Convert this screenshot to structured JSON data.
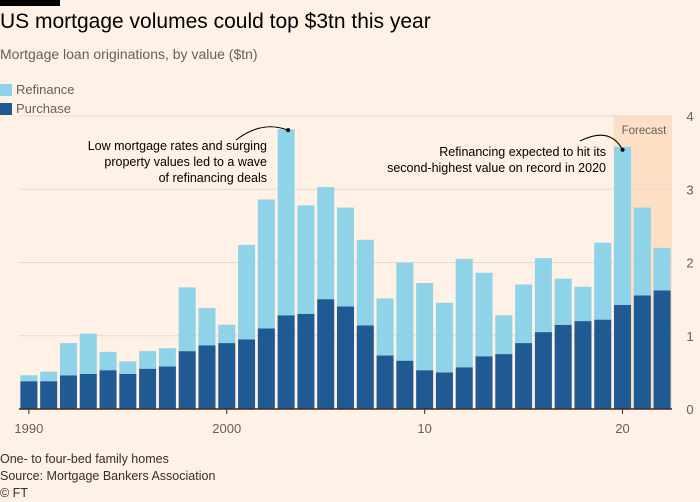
{
  "header": {
    "title": "US mortgage volumes could top $3tn this year",
    "subtitle": "Mortgage loan originations, by value ($tn)"
  },
  "legend": [
    {
      "label": "Refinance",
      "color": "#8fd3e8"
    },
    {
      "label": "Purchase",
      "color": "#1f5a93"
    }
  ],
  "footer": {
    "note": "One- to four-bed family homes",
    "source": "Source: Mortgage Bankers Association",
    "credit": "© FT"
  },
  "chart_data": {
    "type": "bar",
    "stacked": true,
    "title": "US mortgage volumes could top $3tn this year",
    "ylabel": "Mortgage loan originations, by value ($tn)",
    "ylim": [
      0,
      4
    ],
    "yticks": [
      "0",
      "1",
      "2",
      "3",
      "4"
    ],
    "y_axis_side": "right",
    "categories": [
      1990,
      1991,
      1992,
      1993,
      1994,
      1995,
      1996,
      1997,
      1998,
      1999,
      2000,
      2001,
      2002,
      2003,
      2004,
      2005,
      2006,
      2007,
      2008,
      2009,
      2010,
      2011,
      2012,
      2013,
      2014,
      2015,
      2016,
      2017,
      2018,
      2019,
      2020,
      2021,
      2022
    ],
    "x_tick_labels": [
      {
        "year": 1990,
        "label": "1990"
      },
      {
        "year": 2000,
        "label": "2000"
      },
      {
        "year": 2010,
        "label": "10"
      },
      {
        "year": 2020,
        "label": "20"
      }
    ],
    "series": [
      {
        "name": "Purchase",
        "color": "#1f5a93",
        "values": [
          0.38,
          0.38,
          0.46,
          0.48,
          0.53,
          0.48,
          0.55,
          0.58,
          0.79,
          0.87,
          0.9,
          0.95,
          1.1,
          1.28,
          1.3,
          1.5,
          1.4,
          1.14,
          0.73,
          0.66,
          0.53,
          0.5,
          0.57,
          0.72,
          0.75,
          0.9,
          1.05,
          1.15,
          1.2,
          1.22,
          1.42,
          1.55,
          1.62
        ]
      },
      {
        "name": "Refinance",
        "color": "#8fd3e8",
        "values": [
          0.08,
          0.13,
          0.44,
          0.55,
          0.25,
          0.17,
          0.24,
          0.25,
          0.87,
          0.51,
          0.25,
          1.29,
          1.76,
          2.54,
          1.48,
          1.53,
          1.35,
          1.17,
          0.78,
          1.34,
          1.19,
          0.95,
          1.48,
          1.14,
          0.53,
          0.8,
          1.01,
          0.63,
          0.47,
          1.05,
          2.16,
          1.2,
          0.58
        ]
      }
    ],
    "forecast": {
      "from_year": 2020,
      "to_year": 2022,
      "label": "Forecast",
      "color": "#fddfc6"
    },
    "annotations": [
      {
        "year": 2003,
        "lines": [
          "Low mortgage rates and surging",
          "property values led to a wave",
          "of refinancing deals"
        ]
      },
      {
        "year": 2020,
        "lines": [
          "Refinancing expected to hit its",
          "second-highest value on record in 2020"
        ]
      }
    ]
  }
}
